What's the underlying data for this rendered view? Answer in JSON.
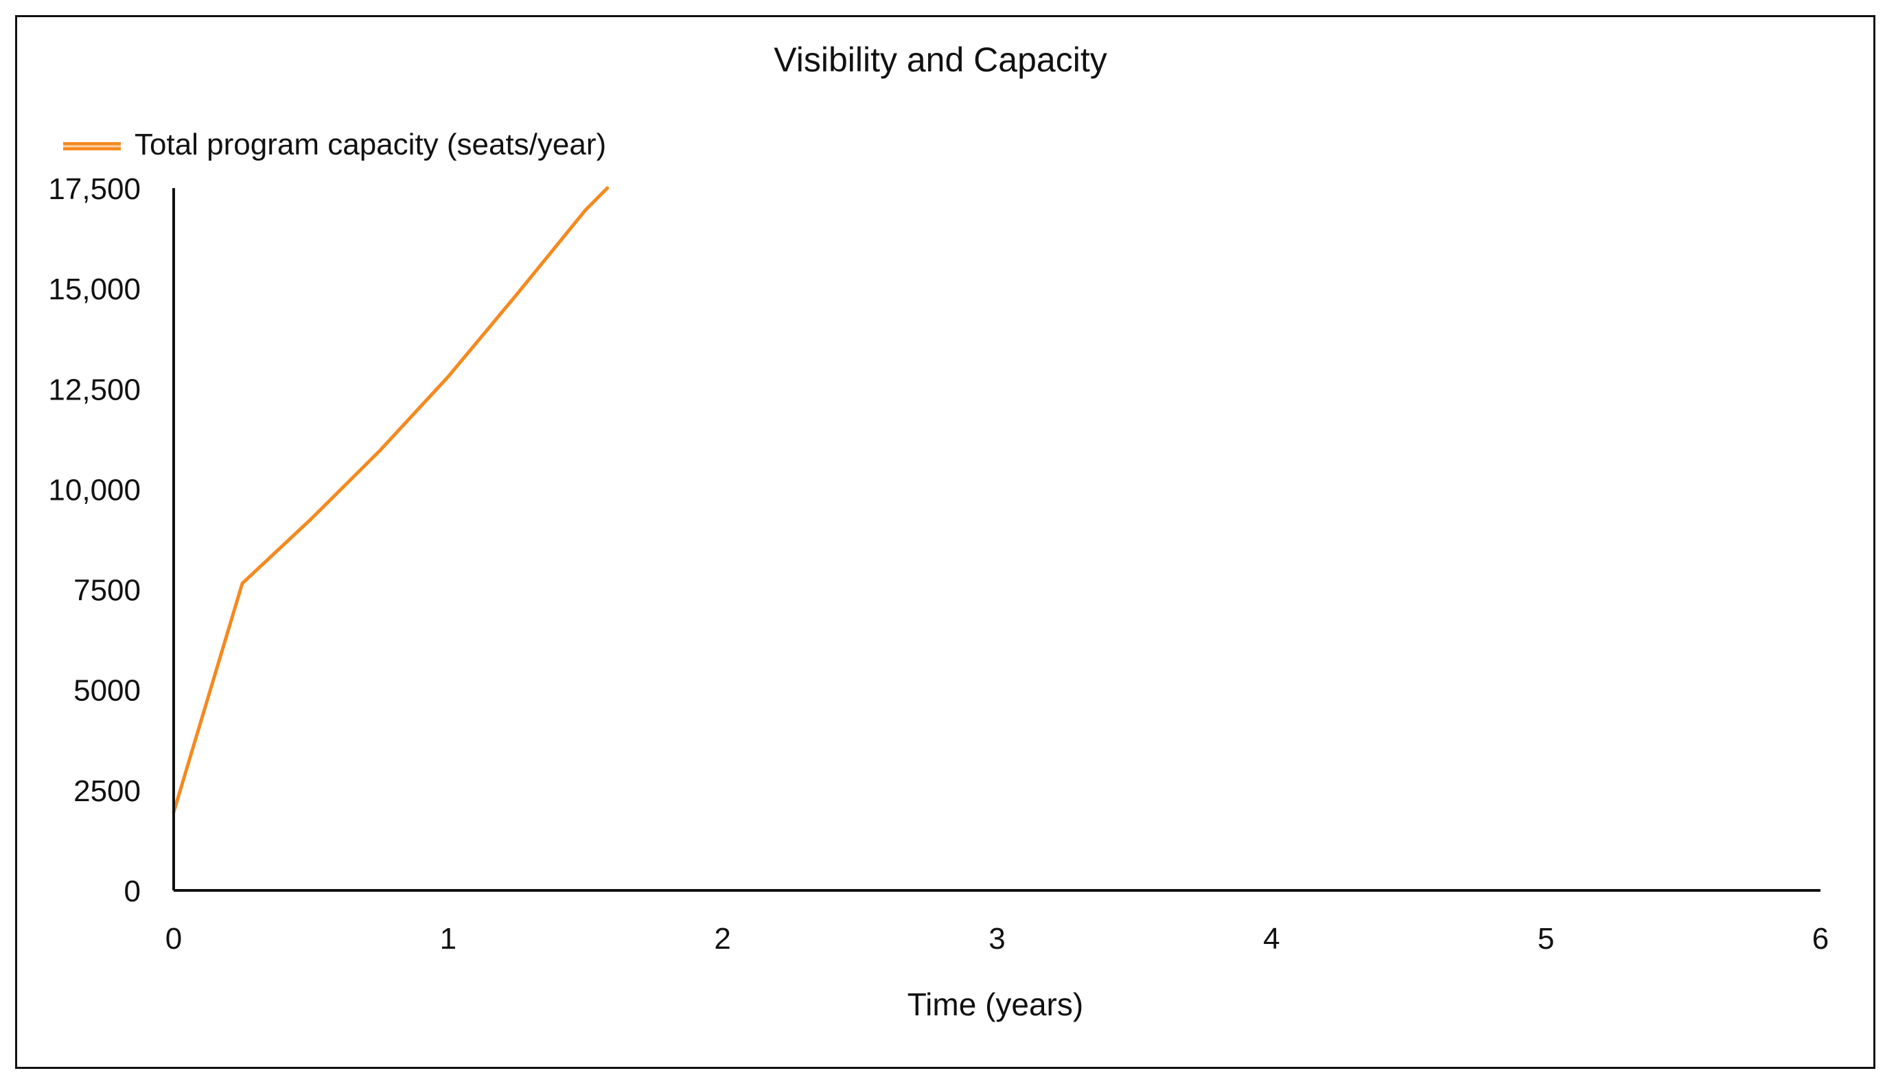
{
  "chart_data": {
    "type": "line",
    "title": "Visibility and Capacity",
    "xlabel": "Time (years)",
    "ylabel": "",
    "xlim": [
      0,
      6
    ],
    "ylim": [
      0,
      17500
    ],
    "x_ticks": [
      0,
      1,
      2,
      3,
      4,
      5,
      6
    ],
    "x_tick_labels": [
      "0",
      "1",
      "2",
      "3",
      "4",
      "5",
      "6"
    ],
    "y_ticks": [
      0,
      2500,
      5000,
      7500,
      10000,
      12500,
      15000,
      17500
    ],
    "y_tick_labels": [
      "0",
      "2500",
      "5000",
      "7500",
      "10,000",
      "12,500",
      "15,000",
      "17,500"
    ],
    "grid": false,
    "legend_position": "top-left",
    "series": [
      {
        "name": "Total program capacity (seats/year)",
        "color": "#f5891f",
        "x": [
          0,
          0.25,
          0.5,
          0.75,
          1.0,
          1.25,
          1.5,
          1.58
        ],
        "y": [
          1950,
          7650,
          9250,
          10950,
          12800,
          14850,
          16950,
          17500
        ]
      }
    ]
  }
}
